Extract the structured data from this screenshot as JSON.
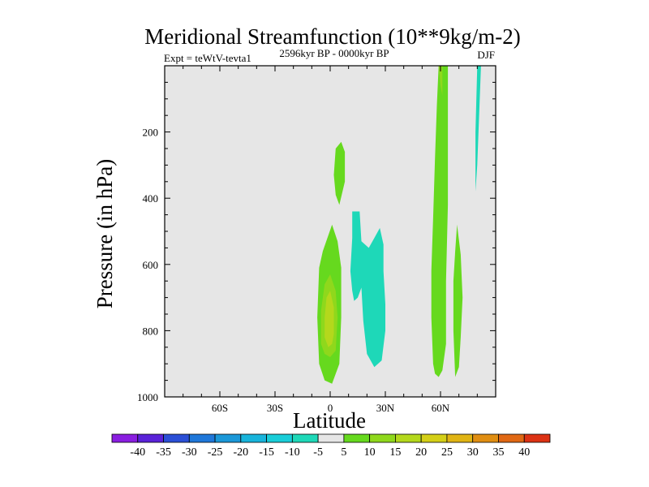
{
  "chart_data": {
    "type": "contour",
    "title": "Meridional Streamfunction (10**9kg/m-2)",
    "experiment": "Expt = teWtV-tevta1",
    "period": "2596kyr BP - 0000kyr BP",
    "season": "DJF",
    "xlabel": "Latitude",
    "ylabel": "Pressure (in hPa)",
    "xlim": [
      -90,
      90
    ],
    "ylim": [
      0,
      1000
    ],
    "x_ticks": [
      {
        "value": -60,
        "label": "60S"
      },
      {
        "value": -30,
        "label": "30S"
      },
      {
        "value": 0,
        "label": "0"
      },
      {
        "value": 30,
        "label": "30N"
      },
      {
        "value": 60,
        "label": "60N"
      }
    ],
    "y_ticks": [
      {
        "value": 200,
        "label": "200"
      },
      {
        "value": 400,
        "label": "400"
      },
      {
        "value": 600,
        "label": "600"
      },
      {
        "value": 800,
        "label": "800"
      },
      {
        "value": 1000,
        "label": "1000"
      }
    ],
    "colorbar": {
      "levels": [
        "-40",
        "-35",
        "-30",
        "-25",
        "-20",
        "-15",
        "-10",
        "-5",
        "5",
        "10",
        "15",
        "20",
        "25",
        "30",
        "35",
        "40"
      ],
      "colors": [
        "#8a1ee0",
        "#5a22d8",
        "#2b4fd6",
        "#1f77d9",
        "#1b98d8",
        "#18b4db",
        "#19cdd8",
        "#1ed8b8",
        "#e6e6e6",
        "#66d91e",
        "#8fd81c",
        "#b4d81c",
        "#d4cf17",
        "#e0b414",
        "#e08e12",
        "#e06814",
        "#dc3214"
      ]
    },
    "contour_regions": [
      {
        "name": "positive-5-10-equator",
        "color": "#66d91e",
        "points": [
          [
            -6,
            900
          ],
          [
            -7,
            760
          ],
          [
            -6,
            610
          ],
          [
            -4,
            560
          ],
          [
            1,
            480
          ],
          [
            4,
            530
          ],
          [
            6,
            610
          ],
          [
            6,
            760
          ],
          [
            5,
            900
          ],
          [
            1,
            960
          ],
          [
            -3,
            950
          ]
        ]
      },
      {
        "name": "positive-10-15-equator",
        "color": "#8fd81c",
        "points": [
          [
            -5,
            840
          ],
          [
            -5,
            740
          ],
          [
            -3,
            660
          ],
          [
            0,
            630
          ],
          [
            3,
            680
          ],
          [
            4,
            760
          ],
          [
            3,
            860
          ],
          [
            0,
            880
          ],
          [
            -3,
            870
          ]
        ]
      },
      {
        "name": "positive-15-20-equator",
        "color": "#b4d81c",
        "points": [
          [
            -3,
            820
          ],
          [
            -3,
            760
          ],
          [
            -2,
            700
          ],
          [
            0,
            680
          ],
          [
            2,
            730
          ],
          [
            2,
            810
          ],
          [
            1,
            840
          ],
          [
            -1,
            850
          ]
        ]
      },
      {
        "name": "positive-5-10-upper-equator",
        "color": "#66d91e",
        "points": [
          [
            2,
            330
          ],
          [
            3,
            250
          ],
          [
            6,
            230
          ],
          [
            8,
            260
          ],
          [
            8,
            350
          ],
          [
            5,
            420
          ],
          [
            3,
            390
          ]
        ]
      },
      {
        "name": "negative-5-10-north-tropics",
        "color": "#1ed8b8",
        "points": [
          [
            11,
            620
          ],
          [
            12,
            520
          ],
          [
            12,
            440
          ],
          [
            16,
            440
          ],
          [
            17,
            530
          ],
          [
            21,
            550
          ],
          [
            24,
            520
          ],
          [
            27,
            490
          ],
          [
            29,
            540
          ],
          [
            29,
            620
          ],
          [
            30,
            720
          ],
          [
            30,
            800
          ],
          [
            28,
            890
          ],
          [
            24,
            910
          ],
          [
            20,
            870
          ],
          [
            18,
            770
          ],
          [
            17,
            670
          ],
          [
            15,
            700
          ],
          [
            13,
            710
          ],
          [
            12,
            680
          ]
        ]
      },
      {
        "name": "positive-5-10-60N-column",
        "color": "#66d91e",
        "points": [
          [
            56,
            900
          ],
          [
            55,
            760
          ],
          [
            55,
            620
          ],
          [
            56,
            460
          ],
          [
            57,
            280
          ],
          [
            58,
            120
          ],
          [
            59,
            0
          ],
          [
            64,
            0
          ],
          [
            64,
            200
          ],
          [
            64,
            420
          ],
          [
            63,
            650
          ],
          [
            63,
            840
          ],
          [
            61,
            920
          ],
          [
            59,
            940
          ],
          [
            57,
            930
          ]
        ]
      },
      {
        "name": "positive-10-15-60N-core",
        "color": "#8fd81c",
        "points": [
          [
            59,
            0
          ],
          [
            60,
            -10
          ],
          [
            61,
            0
          ],
          [
            61,
            90
          ],
          [
            60,
            60
          ]
        ]
      },
      {
        "name": "positive-5-10-68N",
        "color": "#66d91e",
        "points": [
          [
            67,
            800
          ],
          [
            67,
            650
          ],
          [
            68,
            560
          ],
          [
            69,
            480
          ],
          [
            71,
            570
          ],
          [
            72,
            700
          ],
          [
            71,
            820
          ],
          [
            70,
            910
          ],
          [
            68,
            940
          ]
        ]
      },
      {
        "name": "negative-5-10-80N-strip",
        "color": "#1ed8b8",
        "points": [
          [
            79,
            380
          ],
          [
            79,
            200
          ],
          [
            80,
            0
          ],
          [
            82,
            0
          ],
          [
            81,
            150
          ],
          [
            80,
            300
          ]
        ]
      }
    ]
  }
}
